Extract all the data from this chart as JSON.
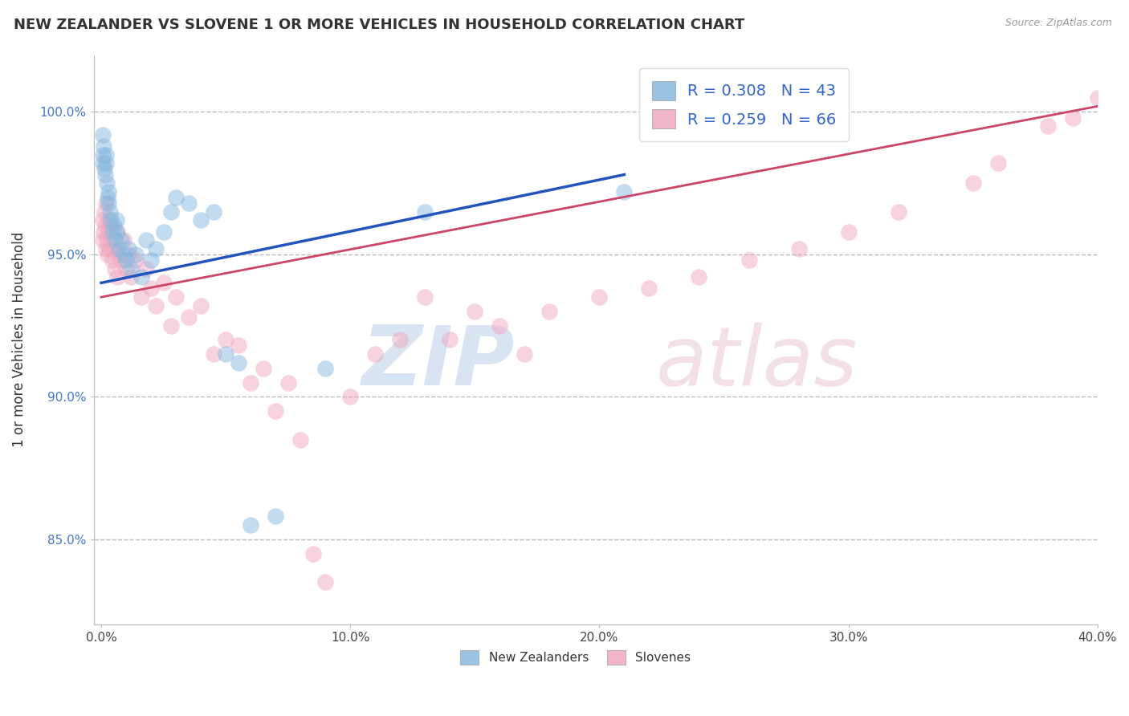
{
  "title": "NEW ZEALANDER VS SLOVENE 1 OR MORE VEHICLES IN HOUSEHOLD CORRELATION CHART",
  "source": "Source: ZipAtlas.com",
  "ylabel": "1 or more Vehicles in Household",
  "xlabel": "",
  "xlim": [
    -0.3,
    40.0
  ],
  "ylim": [
    82.0,
    102.0
  ],
  "yticks": [
    85.0,
    90.0,
    95.0,
    100.0
  ],
  "xticks": [
    0.0,
    10.0,
    20.0,
    30.0,
    40.0
  ],
  "xtick_labels": [
    "0.0%",
    "10.0%",
    "20.0%",
    "30.0%",
    "40.0%"
  ],
  "ytick_labels": [
    "85.0%",
    "90.0%",
    "95.0%",
    "100.0%"
  ],
  "legend_entries": [
    {
      "label": "R = 0.308   N = 43",
      "color": "#a8c4e0"
    },
    {
      "label": "R = 0.259   N = 66",
      "color": "#f0b0c4"
    }
  ],
  "nz_color": "#89b8de",
  "sl_color": "#f0a8c0",
  "nz_line_color": "#2255bb",
  "sl_line_color": "#cc4466",
  "grid_color": "#bbbbbb",
  "title_fontsize": 13,
  "nz_line": [
    0.0,
    94.0,
    21.0,
    97.8
  ],
  "sl_line": [
    0.0,
    93.5,
    40.0,
    100.2
  ],
  "nz_points": [
    [
      0.05,
      98.5
    ],
    [
      0.07,
      98.2
    ],
    [
      0.08,
      99.2
    ],
    [
      0.1,
      98.8
    ],
    [
      0.12,
      98.0
    ],
    [
      0.15,
      97.8
    ],
    [
      0.18,
      98.5
    ],
    [
      0.2,
      98.2
    ],
    [
      0.22,
      97.5
    ],
    [
      0.25,
      97.0
    ],
    [
      0.28,
      97.2
    ],
    [
      0.3,
      96.8
    ],
    [
      0.35,
      96.5
    ],
    [
      0.4,
      96.2
    ],
    [
      0.45,
      95.8
    ],
    [
      0.5,
      96.0
    ],
    [
      0.55,
      95.5
    ],
    [
      0.6,
      96.2
    ],
    [
      0.65,
      95.8
    ],
    [
      0.7,
      95.2
    ],
    [
      0.8,
      95.5
    ],
    [
      0.9,
      95.0
    ],
    [
      1.0,
      94.8
    ],
    [
      1.1,
      95.2
    ],
    [
      1.2,
      94.5
    ],
    [
      1.4,
      95.0
    ],
    [
      1.6,
      94.2
    ],
    [
      1.8,
      95.5
    ],
    [
      2.0,
      94.8
    ],
    [
      2.2,
      95.2
    ],
    [
      2.5,
      95.8
    ],
    [
      2.8,
      96.5
    ],
    [
      3.0,
      97.0
    ],
    [
      3.5,
      96.8
    ],
    [
      4.0,
      96.2
    ],
    [
      4.5,
      96.5
    ],
    [
      5.0,
      91.5
    ],
    [
      5.5,
      91.2
    ],
    [
      6.0,
      85.5
    ],
    [
      7.0,
      85.8
    ],
    [
      9.0,
      91.0
    ],
    [
      13.0,
      96.5
    ],
    [
      21.0,
      97.2
    ]
  ],
  "sl_points": [
    [
      0.05,
      95.5
    ],
    [
      0.07,
      96.2
    ],
    [
      0.1,
      95.8
    ],
    [
      0.12,
      96.5
    ],
    [
      0.15,
      96.0
    ],
    [
      0.18,
      95.2
    ],
    [
      0.2,
      96.8
    ],
    [
      0.22,
      95.5
    ],
    [
      0.25,
      95.0
    ],
    [
      0.28,
      96.2
    ],
    [
      0.3,
      95.8
    ],
    [
      0.32,
      95.2
    ],
    [
      0.35,
      96.0
    ],
    [
      0.4,
      95.5
    ],
    [
      0.45,
      94.8
    ],
    [
      0.5,
      95.2
    ],
    [
      0.55,
      94.5
    ],
    [
      0.6,
      95.8
    ],
    [
      0.65,
      94.2
    ],
    [
      0.7,
      95.0
    ],
    [
      0.8,
      94.8
    ],
    [
      0.9,
      95.5
    ],
    [
      1.0,
      94.5
    ],
    [
      1.1,
      95.0
    ],
    [
      1.2,
      94.2
    ],
    [
      1.4,
      94.8
    ],
    [
      1.6,
      93.5
    ],
    [
      1.8,
      94.5
    ],
    [
      2.0,
      93.8
    ],
    [
      2.2,
      93.2
    ],
    [
      2.5,
      94.0
    ],
    [
      2.8,
      92.5
    ],
    [
      3.0,
      93.5
    ],
    [
      3.5,
      92.8
    ],
    [
      4.0,
      93.2
    ],
    [
      4.5,
      91.5
    ],
    [
      5.0,
      92.0
    ],
    [
      5.5,
      91.8
    ],
    [
      6.0,
      90.5
    ],
    [
      6.5,
      91.0
    ],
    [
      7.0,
      89.5
    ],
    [
      7.5,
      90.5
    ],
    [
      8.0,
      88.5
    ],
    [
      8.5,
      84.5
    ],
    [
      9.0,
      83.5
    ],
    [
      10.0,
      90.0
    ],
    [
      11.0,
      91.5
    ],
    [
      12.0,
      92.0
    ],
    [
      13.0,
      93.5
    ],
    [
      14.0,
      92.0
    ],
    [
      15.0,
      93.0
    ],
    [
      16.0,
      92.5
    ],
    [
      17.0,
      91.5
    ],
    [
      18.0,
      93.0
    ],
    [
      20.0,
      93.5
    ],
    [
      22.0,
      93.8
    ],
    [
      24.0,
      94.2
    ],
    [
      26.0,
      94.8
    ],
    [
      28.0,
      95.2
    ],
    [
      30.0,
      95.8
    ],
    [
      32.0,
      96.5
    ],
    [
      35.0,
      97.5
    ],
    [
      36.0,
      98.2
    ],
    [
      38.0,
      99.5
    ],
    [
      39.0,
      99.8
    ],
    [
      40.0,
      100.5
    ]
  ]
}
